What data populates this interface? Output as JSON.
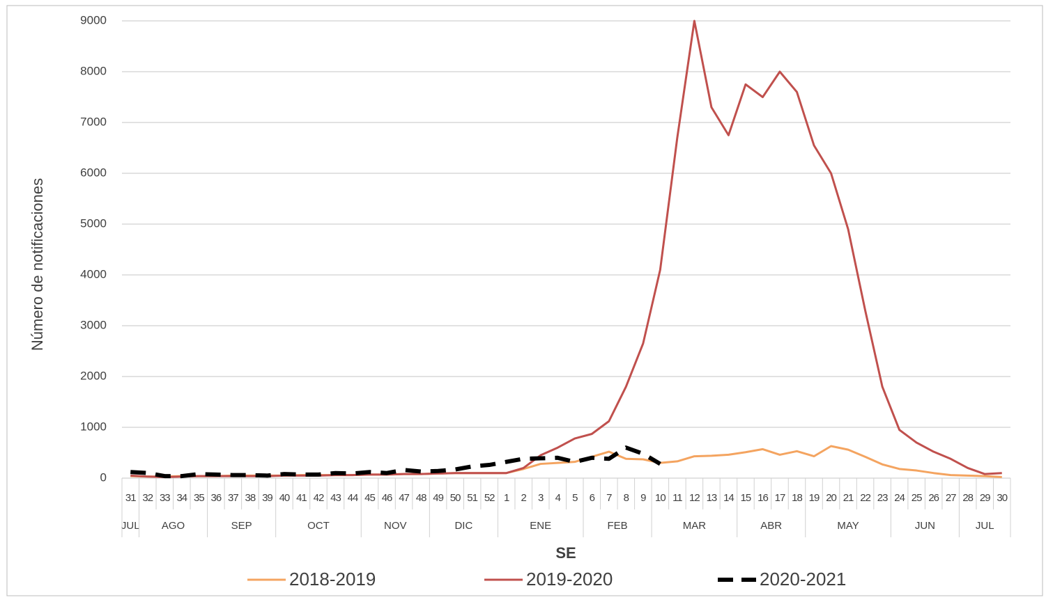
{
  "chart_data": {
    "type": "line",
    "y_label": "Número de notificaciones",
    "x_label": "SE",
    "categories": [
      "31",
      "32",
      "33",
      "34",
      "35",
      "36",
      "37",
      "38",
      "39",
      "40",
      "41",
      "42",
      "43",
      "44",
      "45",
      "46",
      "47",
      "48",
      "49",
      "50",
      "51",
      "52",
      "1",
      "2",
      "3",
      "4",
      "5",
      "6",
      "7",
      "8",
      "9",
      "10",
      "11",
      "12",
      "13",
      "14",
      "15",
      "16",
      "17",
      "18",
      "19",
      "20",
      "21",
      "22",
      "23",
      "24",
      "25",
      "26",
      "27",
      "28",
      "29",
      "30"
    ],
    "category_groups": [
      "JUL",
      "AGO",
      "AGO",
      "AGO",
      "AGO",
      "SEP",
      "SEP",
      "SEP",
      "SEP",
      "OCT",
      "OCT",
      "OCT",
      "OCT",
      "OCT",
      "NOV",
      "NOV",
      "NOV",
      "NOV",
      "DIC",
      "DIC",
      "DIC",
      "DIC",
      "ENE",
      "ENE",
      "ENE",
      "ENE",
      "ENE",
      "FEB",
      "FEB",
      "FEB",
      "FEB",
      "MAR",
      "MAR",
      "MAR",
      "MAR",
      "MAR",
      "ABR",
      "ABR",
      "ABR",
      "ABR",
      "MAY",
      "MAY",
      "MAY",
      "MAY",
      "MAY",
      "JUN",
      "JUN",
      "JUN",
      "JUN",
      "JUL",
      "JUL",
      "JUL"
    ],
    "series": [
      {
        "name": "2018-2019",
        "color": "#f4a460",
        "dashed": false,
        "values": [
          40,
          30,
          30,
          40,
          40,
          40,
          50,
          50,
          50,
          50,
          60,
          60,
          60,
          60,
          70,
          70,
          80,
          80,
          90,
          100,
          100,
          100,
          100,
          180,
          280,
          300,
          320,
          420,
          520,
          380,
          370,
          300,
          330,
          430,
          440,
          460,
          510,
          570,
          460,
          530,
          430,
          630,
          560,
          420,
          270,
          180,
          150,
          100,
          60,
          50,
          40,
          20
        ]
      },
      {
        "name": "2019-2020",
        "color": "#c0504d",
        "dashed": false,
        "values": [
          50,
          30,
          20,
          30,
          40,
          40,
          40,
          40,
          40,
          50,
          50,
          50,
          60,
          60,
          70,
          70,
          80,
          80,
          90,
          100,
          100,
          100,
          100,
          200,
          450,
          600,
          780,
          870,
          1120,
          1800,
          2650,
          4100,
          6700,
          9000,
          7300,
          6750,
          7750,
          7500,
          8000,
          7600,
          6550,
          6000,
          4900,
          3300,
          1800,
          950,
          700,
          520,
          380,
          200,
          80,
          100
        ]
      },
      {
        "name": "2020-2021",
        "color": "#000000",
        "dashed": true,
        "values": [
          120,
          100,
          40,
          40,
          80,
          70,
          60,
          60,
          50,
          80,
          70,
          70,
          100,
          90,
          120,
          100,
          160,
          130,
          140,
          170,
          230,
          260,
          320,
          380,
          390,
          400,
          320,
          400,
          380,
          600,
          480,
          280,
          null,
          null,
          null,
          null,
          null,
          null,
          null,
          null,
          null,
          null,
          null,
          null,
          null,
          null,
          null,
          null,
          null,
          null,
          null,
          null
        ]
      }
    ],
    "ylim": [
      0,
      9000
    ],
    "yticks": [
      0,
      1000,
      2000,
      3000,
      4000,
      5000,
      6000,
      7000,
      8000,
      9000
    ],
    "grid": true
  }
}
